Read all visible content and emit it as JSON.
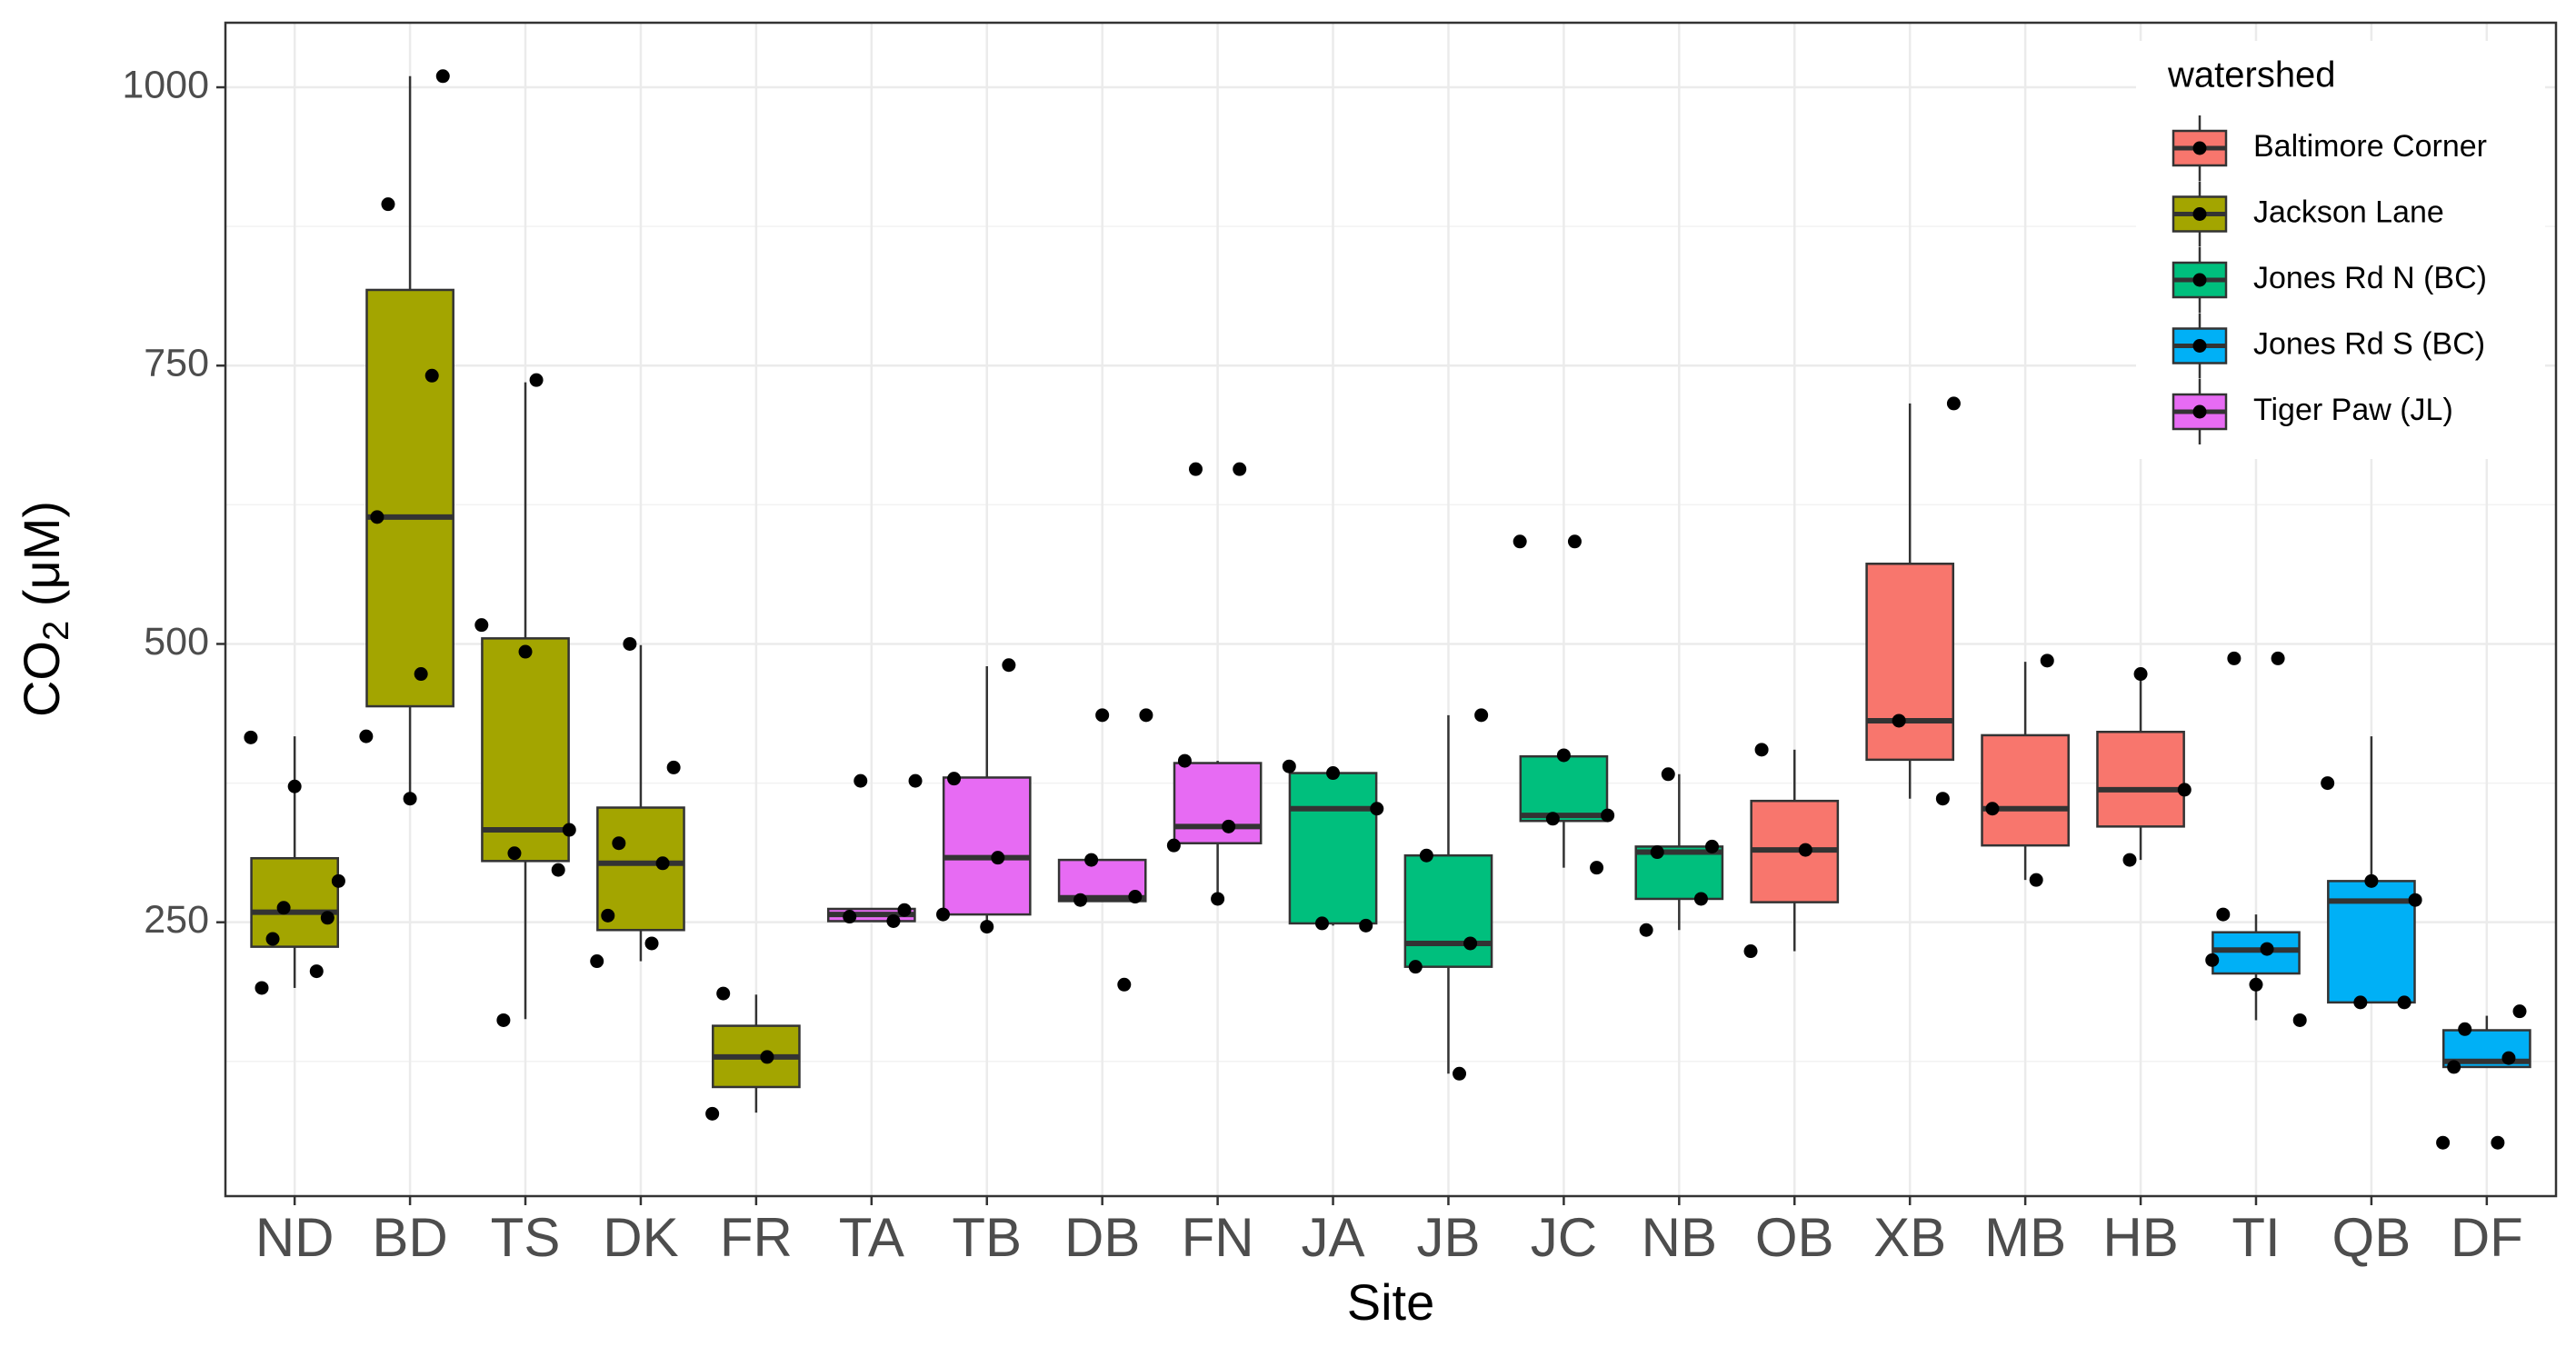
{
  "chart_data": {
    "type": "boxplot",
    "xlabel": "Site",
    "ylabel": {
      "text": "CO",
      "subscript": "2",
      "suffix": " (μM)"
    },
    "categories": [
      "ND",
      "BD",
      "TS",
      "DK",
      "FR",
      "TA",
      "TB",
      "DB",
      "FN",
      "JA",
      "JB",
      "JC",
      "NB",
      "OB",
      "XB",
      "MB",
      "HB",
      "TI",
      "QB",
      "DF"
    ],
    "ylim": [
      4,
      1058
    ],
    "yticks": [
      250,
      500,
      750,
      1000
    ],
    "minor_grid": [
      125,
      375,
      625,
      875
    ],
    "grid": true,
    "legend_title": "watershed",
    "legend_position": "top-right",
    "series": [
      {
        "name": "Baltimore Corner",
        "color": "#F8766D",
        "sites": [
          "OB",
          "XB",
          "MB",
          "HB"
        ],
        "whislo": [
          224,
          361,
          288,
          306
        ],
        "q1": [
          268,
          396,
          319,
          336
        ],
        "median": [
          315,
          431,
          352,
          369
        ],
        "q3": [
          359,
          572,
          418,
          421
        ],
        "whishi": [
          405,
          716,
          484,
          473
        ],
        "points": [
          [
            405,
            315,
            224
          ],
          [
            716,
            431,
            361
          ],
          [
            485,
            352,
            288
          ],
          [
            473,
            369,
            306
          ]
        ]
      },
      {
        "name": "Jackson Lane",
        "color": "#A3A500",
        "sites": [
          "ND",
          "BD",
          "TS",
          "DK",
          "FR"
        ],
        "whislo": [
          191,
          360,
          163,
          215,
          79
        ],
        "q1": [
          228,
          444,
          305,
          243,
          102
        ],
        "median": [
          259,
          614,
          333,
          303,
          129
        ],
        "q3": [
          307.5,
          818,
          505,
          353,
          157
        ],
        "whishi": [
          417,
          1010,
          735,
          499,
          185
        ],
        "points": [
          [
            416,
            372,
            287,
            263,
            254,
            235,
            206,
            191
          ],
          [
            1010,
            895,
            741,
            614,
            473,
            417,
            361
          ],
          [
            737,
            517,
            493,
            333,
            312,
            297,
            162
          ],
          [
            500,
            389,
            321,
            303,
            256,
            231,
            215
          ],
          [
            186,
            129,
            78
          ]
        ]
      },
      {
        "name": "Jones Rd N (BC)",
        "color": "#00BF7D",
        "sites": [
          "JA",
          "JB",
          "JC",
          "NB"
        ],
        "whislo": [
          247,
          114,
          299,
          243
        ],
        "q1": [
          249,
          210,
          341,
          271
        ],
        "median": [
          352,
          231,
          346,
          313
        ],
        "q3": [
          384,
          310,
          399,
          318
        ],
        "whishi": [
          390,
          436,
          400,
          383
        ],
        "points": [
          [
            390,
            384,
            352,
            249,
            247
          ],
          [
            436,
            310,
            231,
            210,
            114
          ],
          [
            592,
            592,
            400,
            346,
            343,
            299
          ],
          [
            383,
            318,
            313,
            271,
            243
          ]
        ]
      },
      {
        "name": "Jones Rd S (BC)",
        "color": "#00B0F6",
        "sites": [
          "TI",
          "QB",
          "DF"
        ],
        "whislo": [
          162,
          178,
          120
        ],
        "q1": [
          204,
          178,
          120
        ],
        "median": [
          225,
          269,
          125
        ],
        "q3": [
          241,
          287,
          153
        ],
        "whishi": [
          257,
          417,
          166
        ],
        "points": [
          [
            487,
            487,
            257,
            226,
            216,
            194,
            162
          ],
          [
            375,
            287,
            270,
            178,
            178
          ],
          [
            170,
            154,
            128,
            120,
            52,
            52
          ]
        ]
      },
      {
        "name": "Tiger Paw (JL)",
        "color": "#E76BF3",
        "sites": [
          "TA",
          "TB",
          "DB",
          "FN"
        ],
        "whislo": [
          251,
          249,
          270,
          271
        ],
        "q1": [
          251,
          257,
          269,
          321
        ],
        "median": [
          257,
          308,
          272,
          336
        ],
        "q3": [
          262,
          380,
          306,
          393
        ],
        "whishi": [
          262,
          480,
          306,
          395
        ],
        "points": [
          [
            377,
            377,
            261,
            255,
            251
          ],
          [
            481,
            379,
            308,
            257,
            246
          ],
          [
            436,
            436,
            306,
            273,
            270,
            194
          ],
          [
            657,
            657,
            395,
            336,
            319,
            271
          ]
        ]
      }
    ]
  }
}
